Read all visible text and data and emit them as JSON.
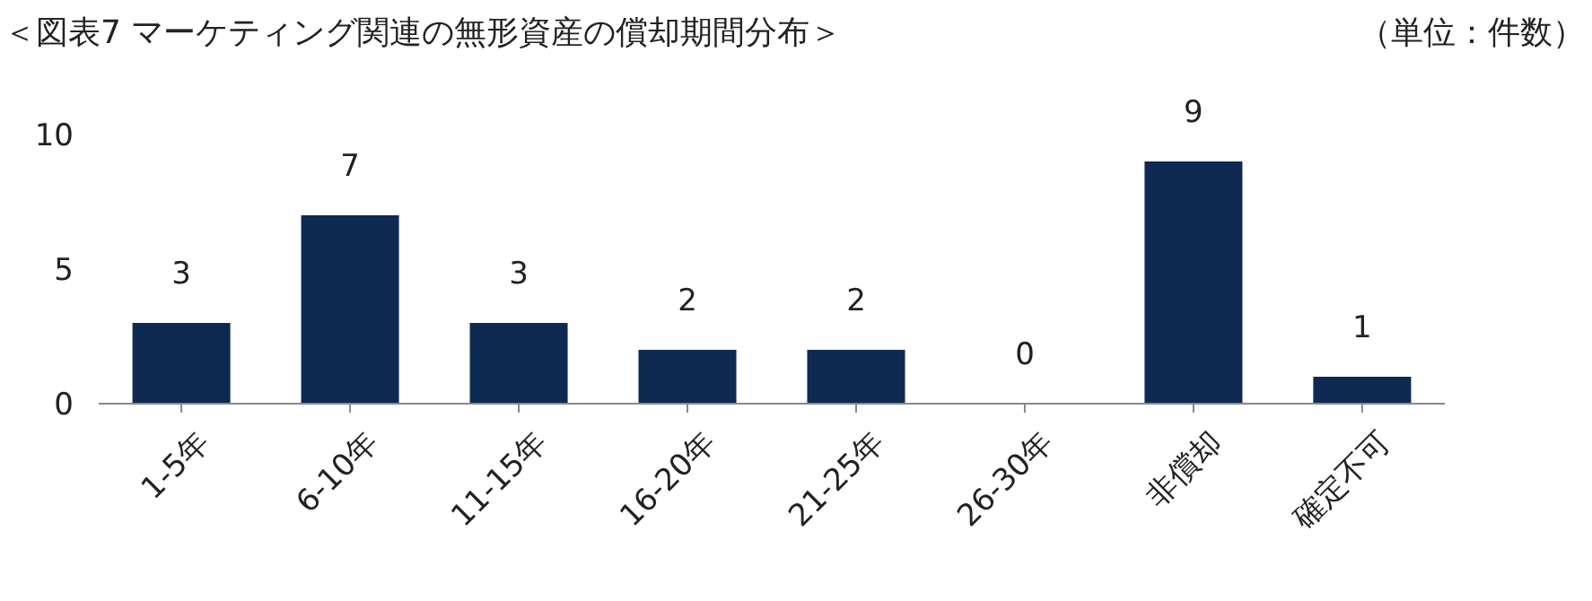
{
  "chart_data": {
    "type": "bar",
    "title": "＜図表7 マーケティング関連の無形資産の償却期間分布＞",
    "annotations": [
      "（単位：件数）"
    ],
    "categories": [
      "1-5年",
      "6-10年",
      "11-15年",
      "16-20年",
      "21-25年",
      "26-30年",
      "非償却",
      "確定不可"
    ],
    "values": [
      3,
      7,
      3,
      2,
      2,
      0,
      9,
      1
    ],
    "color": "#0f2a52",
    "ylim": [
      0,
      10
    ],
    "yticks": [
      0,
      5,
      10
    ],
    "grid": false,
    "data_labels": true
  }
}
